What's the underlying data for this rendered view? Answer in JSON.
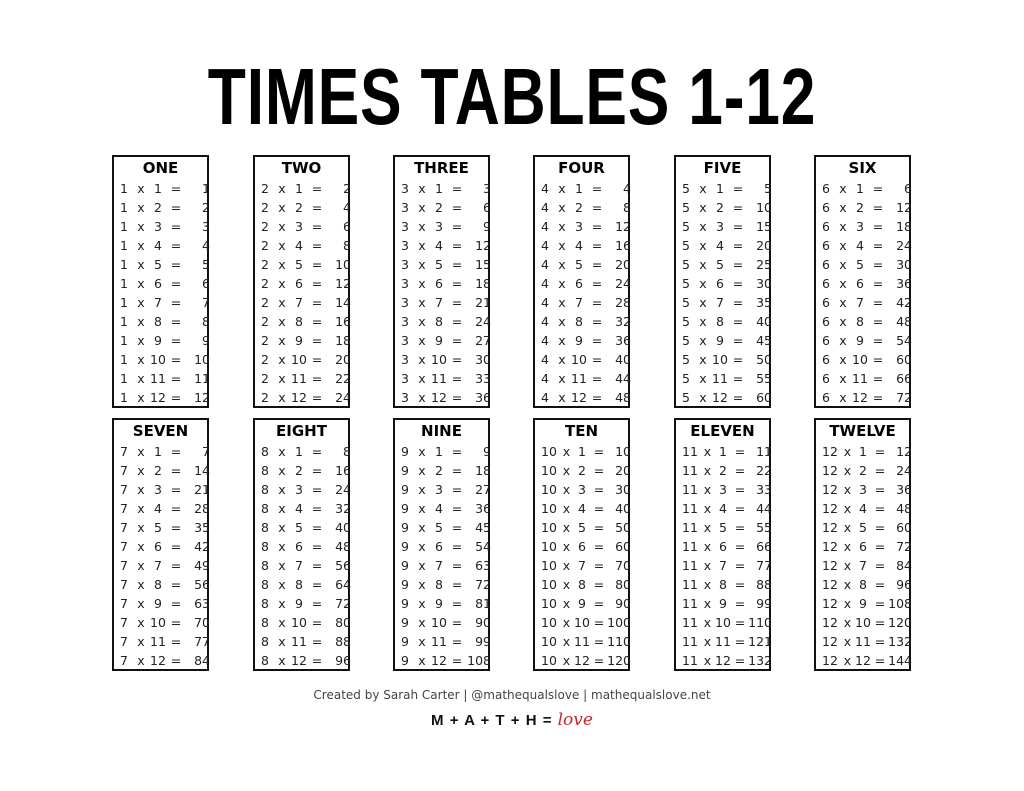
{
  "title": "TIMES TABLES 1-12",
  "tables": [
    {
      "name": "ONE",
      "n": 1
    },
    {
      "name": "TWO",
      "n": 2
    },
    {
      "name": "THREE",
      "n": 3
    },
    {
      "name": "FOUR",
      "n": 4
    },
    {
      "name": "FIVE",
      "n": 5
    },
    {
      "name": "SIX",
      "n": 6
    },
    {
      "name": "SEVEN",
      "n": 7
    },
    {
      "name": "EIGHT",
      "n": 8
    },
    {
      "name": "NINE",
      "n": 9
    },
    {
      "name": "TEN",
      "n": 10
    },
    {
      "name": "ELEVEN",
      "n": 11
    },
    {
      "name": "TWELVE",
      "n": 12
    }
  ],
  "multipliers": [
    1,
    2,
    3,
    4,
    5,
    6,
    7,
    8,
    9,
    10,
    11,
    12
  ],
  "operator_times": "x",
  "operator_equals": "=",
  "footer": {
    "credit": "Created by Sarah Carter | @mathequalslove | mathequalslove.net",
    "logo_text": "M + A + T + H = ",
    "logo_love": "love",
    "logo_accent_color": "#c0282c"
  }
}
